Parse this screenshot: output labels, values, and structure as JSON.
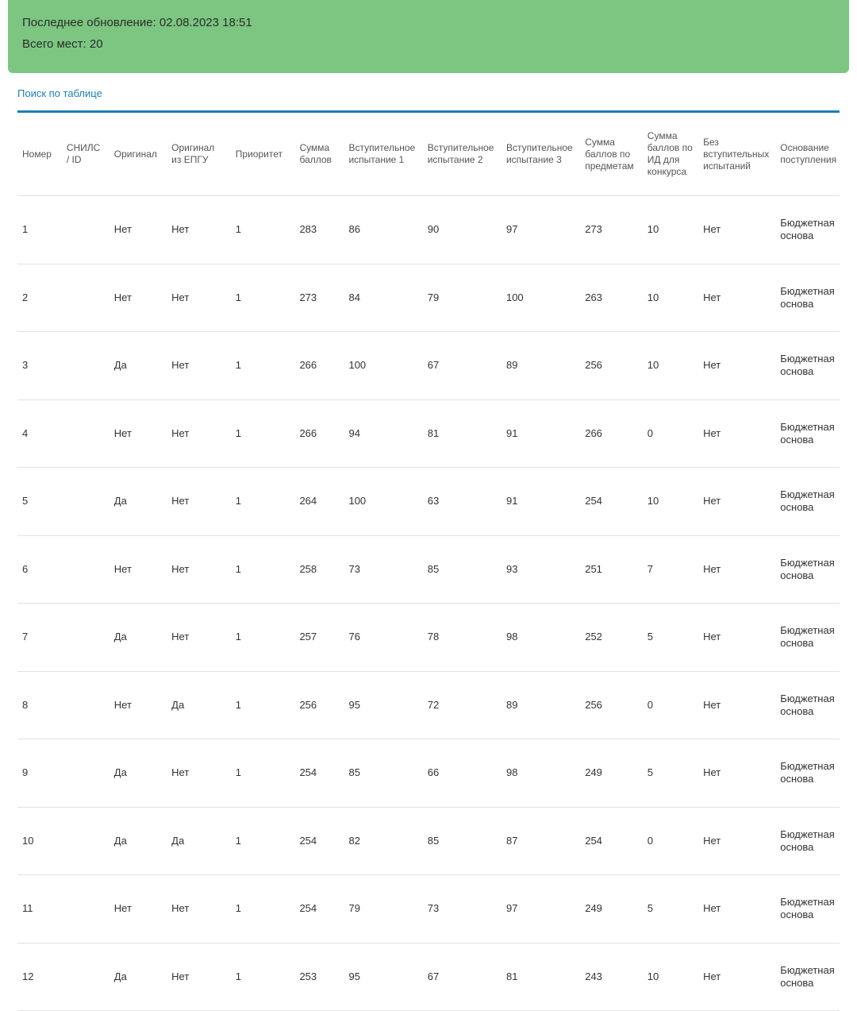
{
  "banner": {
    "lastUpdate": "Последнее обновление: 02.08.2023 18:51",
    "totalSeats": "Всего мест: 20"
  },
  "searchLink": "Поиск по таблице",
  "colors": {
    "banner_bg": "#7cc681",
    "link": "#1b7fb5",
    "divider": "#1b7fb5",
    "row_border": "#e2e2e2",
    "header_text": "#555555",
    "body_text": "#333333"
  },
  "table": {
    "columns": [
      "Номер",
      "СНИЛС / ID",
      "Оригинал",
      "Оригинал из ЕПГУ",
      "Приоритет",
      "Сумма баллов",
      "Вступительное испытание 1",
      "Вступительное испытание 2",
      "Вступительное испытание 3",
      "Сумма баллов по предметам",
      "Сумма баллов по ИД для конкурса",
      "Без вступительных испытаний",
      "Основание поступления"
    ],
    "rows": [
      [
        "1",
        "",
        "Нет",
        "Нет",
        "1",
        "283",
        "86",
        "90",
        "97",
        "273",
        "10",
        "Нет",
        "Бюджетная основа"
      ],
      [
        "2",
        "",
        "Нет",
        "Нет",
        "1",
        "273",
        "84",
        "79",
        "100",
        "263",
        "10",
        "Нет",
        "Бюджетная основа"
      ],
      [
        "3",
        "",
        "Да",
        "Нет",
        "1",
        "266",
        "100",
        "67",
        "89",
        "256",
        "10",
        "Нет",
        "Бюджетная основа"
      ],
      [
        "4",
        "",
        "Нет",
        "Нет",
        "1",
        "266",
        "94",
        "81",
        "91",
        "266",
        "0",
        "Нет",
        "Бюджетная основа"
      ],
      [
        "5",
        "",
        "Да",
        "Нет",
        "1",
        "264",
        "100",
        "63",
        "91",
        "254",
        "10",
        "Нет",
        "Бюджетная основа"
      ],
      [
        "6",
        "",
        "Нет",
        "Нет",
        "1",
        "258",
        "73",
        "85",
        "93",
        "251",
        "7",
        "Нет",
        "Бюджетная основа"
      ],
      [
        "7",
        "",
        "Да",
        "Нет",
        "1",
        "257",
        "76",
        "78",
        "98",
        "252",
        "5",
        "Нет",
        "Бюджетная основа"
      ],
      [
        "8",
        "",
        "Нет",
        "Да",
        "1",
        "256",
        "95",
        "72",
        "89",
        "256",
        "0",
        "Нет",
        "Бюджетная основа"
      ],
      [
        "9",
        "",
        "Да",
        "Нет",
        "1",
        "254",
        "85",
        "66",
        "98",
        "249",
        "5",
        "Нет",
        "Бюджетная основа"
      ],
      [
        "10",
        "",
        "Да",
        "Да",
        "1",
        "254",
        "82",
        "85",
        "87",
        "254",
        "0",
        "Нет",
        "Бюджетная основа"
      ],
      [
        "11",
        "",
        "Нет",
        "Нет",
        "1",
        "254",
        "79",
        "73",
        "97",
        "249",
        "5",
        "Нет",
        "Бюджетная основа"
      ],
      [
        "12",
        "",
        "Да",
        "Нет",
        "1",
        "253",
        "95",
        "67",
        "81",
        "243",
        "10",
        "Нет",
        "Бюджетная основа"
      ]
    ]
  }
}
